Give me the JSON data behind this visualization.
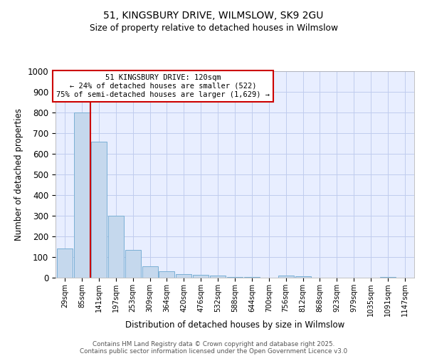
{
  "title_line1": "51, KINGSBURY DRIVE, WILMSLOW, SK9 2GU",
  "title_line2": "Size of property relative to detached houses in Wilmslow",
  "xlabel": "Distribution of detached houses by size in Wilmslow",
  "ylabel": "Number of detached properties",
  "bin_labels": [
    "29sqm",
    "85sqm",
    "141sqm",
    "197sqm",
    "253sqm",
    "309sqm",
    "364sqm",
    "420sqm",
    "476sqm",
    "532sqm",
    "588sqm",
    "644sqm",
    "700sqm",
    "756sqm",
    "812sqm",
    "868sqm",
    "923sqm",
    "979sqm",
    "1035sqm",
    "1091sqm",
    "1147sqm"
  ],
  "bar_values": [
    140,
    800,
    660,
    300,
    135,
    55,
    30,
    17,
    14,
    10,
    5,
    2,
    1,
    10,
    8,
    1,
    1,
    0,
    0,
    4,
    0
  ],
  "bar_color": "#c5d8ed",
  "bar_edge_color": "#7aafd4",
  "red_line_color": "#cc0000",
  "annotation_text_line1": "51 KINGSBURY DRIVE: 120sqm",
  "annotation_text_line2": "← 24% of detached houses are smaller (522)",
  "annotation_text_line3": "75% of semi-detached houses are larger (1,629) →",
  "annotation_box_color": "#cc0000",
  "ylim": [
    0,
    1000
  ],
  "yticks": [
    0,
    100,
    200,
    300,
    400,
    500,
    600,
    700,
    800,
    900,
    1000
  ],
  "footer_line1": "Contains HM Land Registry data © Crown copyright and database right 2025.",
  "footer_line2": "Contains public sector information licensed under the Open Government Licence v3.0",
  "bg_color": "#e8eeff",
  "grid_color": "#c0ccee"
}
